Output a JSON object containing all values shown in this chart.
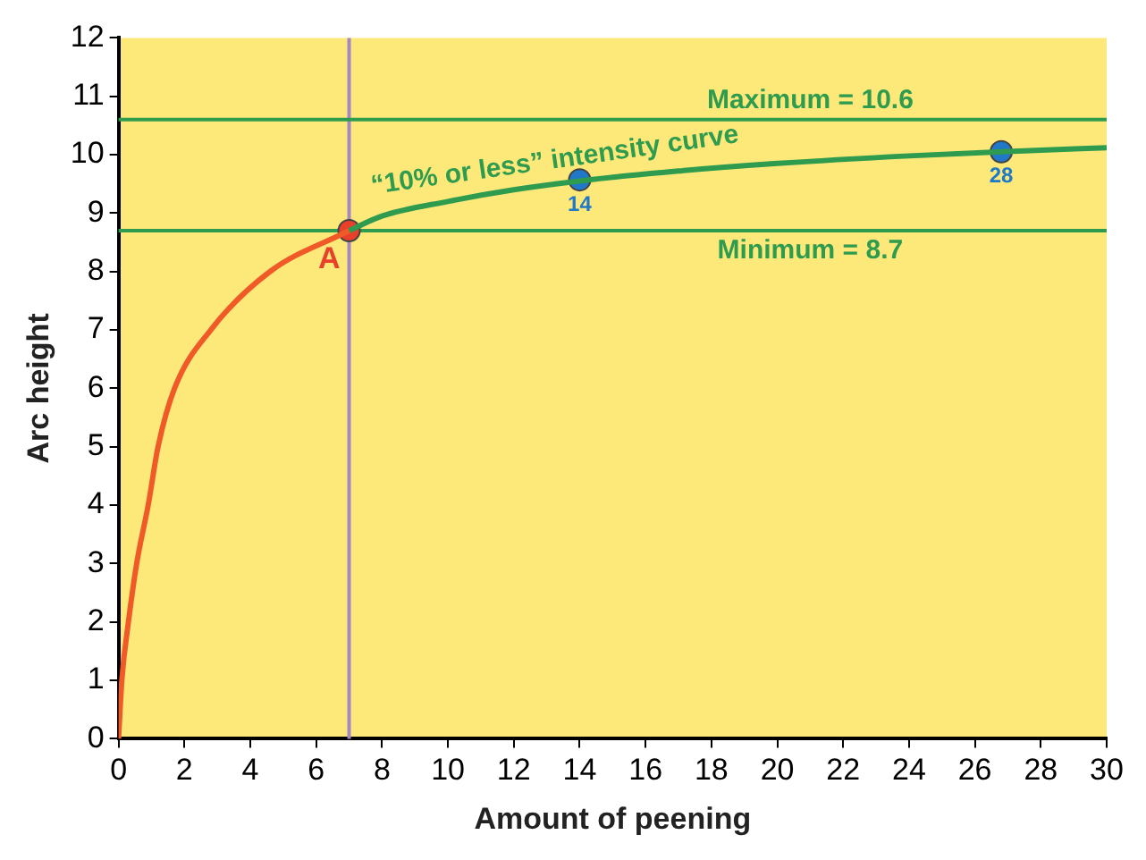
{
  "chart_data": {
    "type": "line",
    "xlabel": "Amount of peening",
    "ylabel": "Arc height",
    "xlim": [
      0,
      30
    ],
    "xticks": [
      0,
      2,
      4,
      6,
      8,
      10,
      12,
      14,
      16,
      18,
      20,
      22,
      24,
      26,
      28,
      30
    ],
    "ylim": [
      0,
      12
    ],
    "yticks": [
      0,
      1,
      2,
      3,
      4,
      5,
      6,
      7,
      8,
      9,
      10,
      11,
      12
    ],
    "grid": false,
    "legend": false,
    "series": [
      {
        "type": "line",
        "color": "#f05a28",
        "marker": "none",
        "x": [
          0,
          0.1,
          0.3,
          0.55,
          0.9,
          1.2,
          1.7,
          2.8,
          4.6,
          7
        ],
        "values": [
          0,
          1,
          2,
          3,
          4,
          5,
          6,
          7,
          8,
          8.7
        ]
      },
      {
        "type": "line",
        "color": "#2e9b4e",
        "marker": "none",
        "x": [
          7,
          8,
          10,
          12,
          14,
          17,
          20,
          24,
          26.8,
          30
        ],
        "values": [
          8.7,
          8.95,
          9.2,
          9.4,
          9.55,
          9.72,
          9.85,
          9.98,
          10.05,
          10.12
        ]
      },
      {
        "type": "scatter",
        "color": "#1f78c8",
        "marker": "circle",
        "x": [
          14,
          26.8
        ],
        "values": [
          9.57,
          10.05
        ]
      },
      {
        "type": "scatter",
        "color": "#e8402a",
        "marker": "circle",
        "x": [
          7
        ],
        "values": [
          8.7
        ]
      }
    ],
    "ref_lines": [
      {
        "axis": "x",
        "value": 7,
        "color": "#a587c4"
      },
      {
        "axis": "y",
        "value": 10.6,
        "label": "Maximum = 10.6",
        "color": "#2e9b4e"
      },
      {
        "axis": "y",
        "value": 8.7,
        "label": "Minimum = 8.7",
        "color": "#2e9b4e"
      }
    ],
    "annotations": [
      {
        "text": "A",
        "x": 7,
        "y": 8.7
      },
      {
        "text": "“10% or less” intensity curve",
        "x": 11,
        "y": 9.3
      },
      {
        "text": "14",
        "x": 14,
        "y": 9.57
      },
      {
        "text": "28",
        "x": 26.8,
        "y": 10.05
      }
    ]
  }
}
